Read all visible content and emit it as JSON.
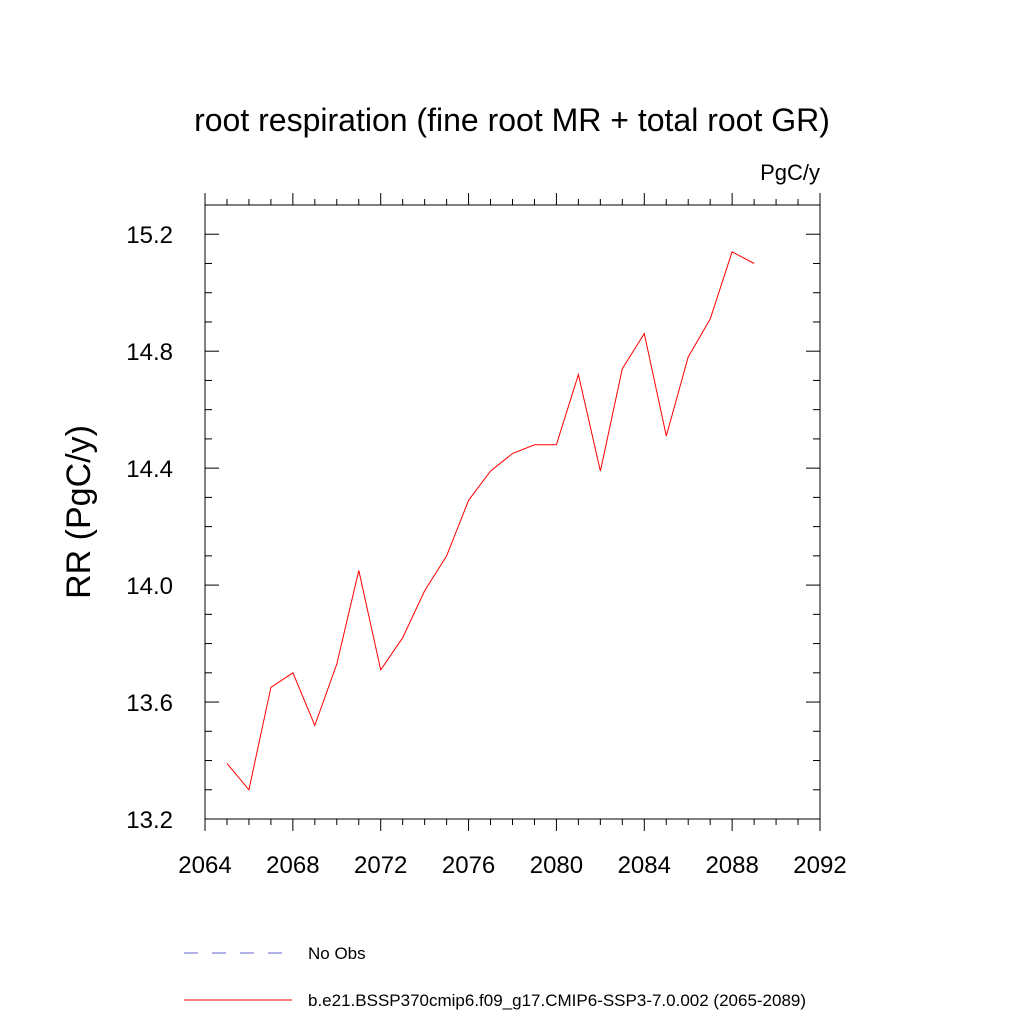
{
  "chart_data": {
    "type": "line",
    "title": "root respiration (fine root MR + total root GR)",
    "units_label": "PgC/y",
    "ylabel": "RR  (PgC/y)",
    "xlabel": "",
    "xlim": [
      2064,
      2092
    ],
    "ylim": [
      13.2,
      15.3
    ],
    "x_ticks": [
      2064,
      2068,
      2072,
      2076,
      2080,
      2084,
      2088,
      2092
    ],
    "x_tick_labels": [
      "2064",
      "2068",
      "2072",
      "2076",
      "2080",
      "2084",
      "2088",
      "2092"
    ],
    "y_ticks": [
      13.2,
      13.6,
      14.0,
      14.4,
      14.8,
      15.2
    ],
    "y_tick_labels": [
      "13.2",
      "13.6",
      "14.0",
      "14.4",
      "14.8",
      "15.2"
    ],
    "grid": false,
    "legend_position": "bottom",
    "series": [
      {
        "name": "b.e21.BSSP370cmip6.f09_g17.CMIP6-SSP3-7.0.002 (2065-2089)",
        "color": "#ff0000",
        "style": "solid",
        "x": [
          2065,
          2066,
          2067,
          2068,
          2069,
          2070,
          2071,
          2072,
          2073,
          2074,
          2075,
          2076,
          2077,
          2078,
          2079,
          2080,
          2081,
          2082,
          2083,
          2084,
          2085,
          2086,
          2087,
          2088,
          2089
        ],
        "y": [
          13.39,
          13.3,
          13.65,
          13.7,
          13.52,
          13.73,
          14.05,
          13.71,
          13.82,
          13.98,
          14.1,
          14.29,
          14.39,
          14.45,
          14.48,
          14.48,
          14.72,
          14.39,
          14.74,
          14.86,
          14.51,
          14.78,
          14.91,
          15.14,
          15.1
        ]
      }
    ],
    "legend": [
      {
        "label": "No Obs",
        "color": "#6666cc",
        "style": "dashed"
      },
      {
        "label": "b.e21.BSSP370cmip6.f09_g17.CMIP6-SSP3-7.0.002 (2065-2089)",
        "color": "#ff0000",
        "style": "solid"
      }
    ]
  }
}
